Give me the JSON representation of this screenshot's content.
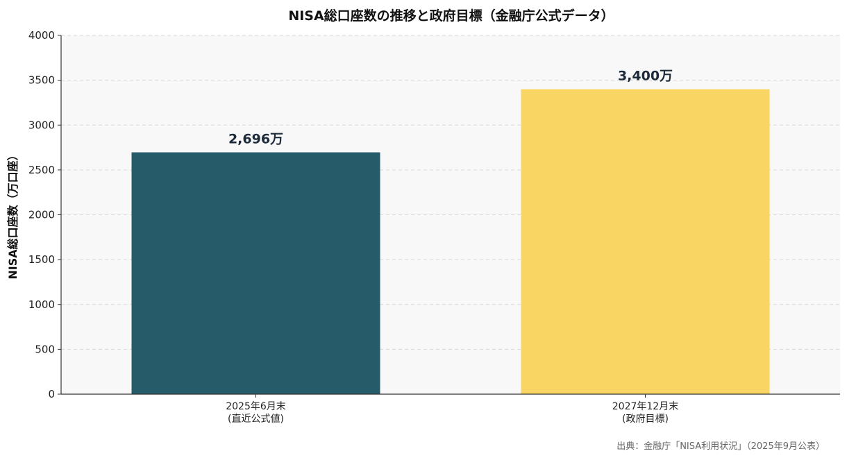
{
  "chart_data": {
    "type": "bar",
    "title": "NISA総口座数の推移と政府目標（金融庁公式データ）",
    "ylabel": "NISA総口座数（万口座）",
    "xlabel": "",
    "ylim": [
      0,
      4000
    ],
    "yticks": [
      "0",
      "500",
      "1000",
      "1500",
      "2000",
      "2500",
      "3000",
      "3500",
      "4000"
    ],
    "grid": true,
    "categories": [
      [
        "2025年6月末",
        "(直近公式値)"
      ],
      [
        "2027年12月末",
        "(政府目標)"
      ]
    ],
    "values": [
      2696,
      3400
    ],
    "data_labels": [
      "2,696万",
      "3,400万"
    ],
    "colors": [
      "#265c6a",
      "#f9d563"
    ],
    "plot_background": "#f8f8f8",
    "source": "出典：金融庁「NISA利用状況」（2025年9月公表）"
  }
}
